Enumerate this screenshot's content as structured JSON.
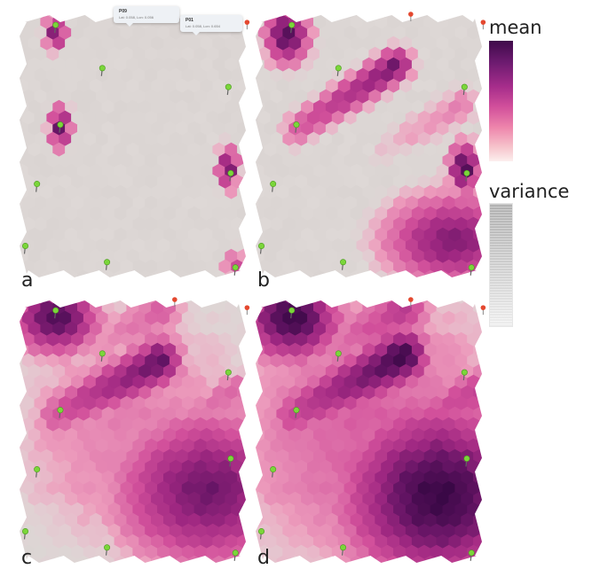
{
  "panels": [
    {
      "label": "a"
    },
    {
      "label": "b"
    },
    {
      "label": "c"
    },
    {
      "label": "d"
    }
  ],
  "legend": {
    "mean_label": "mean",
    "variance_label": "variance",
    "mean_colors": [
      "#fcefee",
      "#ee86ac",
      "#d2509b",
      "#a62d8b",
      "#6d1b70",
      "#3f0a4a"
    ],
    "variance_colors": [
      "#f3f3f3",
      "#b0b0b0"
    ]
  },
  "tooltips": [
    {
      "title": "P09",
      "subtitle": "Lat: 0.058, Lon: 0.056"
    },
    {
      "title": "P01",
      "subtitle": "Lat: 0.058, Lon: 0.654"
    }
  ],
  "marker_colors": {
    "sensor": "#7bd63a",
    "highlight": "#e4482f"
  }
}
